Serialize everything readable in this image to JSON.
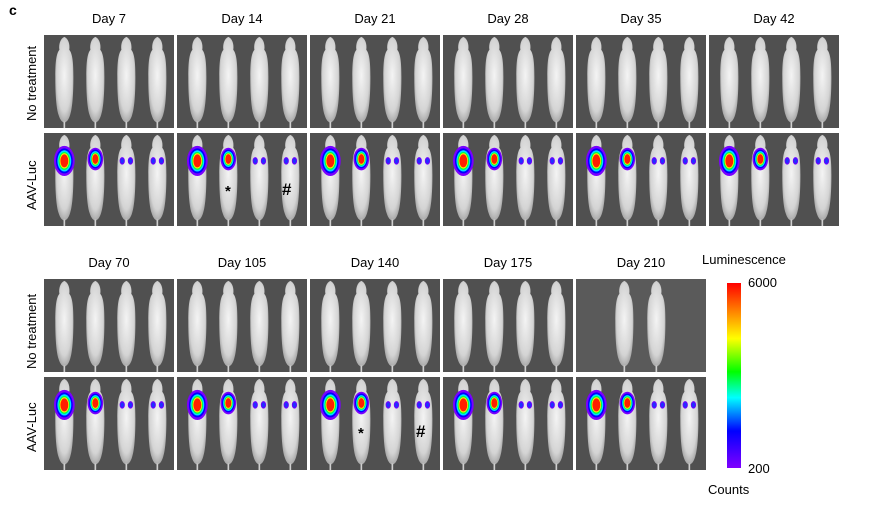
{
  "panel_letter": "c",
  "top": {
    "days": [
      "Day 7",
      "Day 14",
      "Day 21",
      "Day 28",
      "Day 35",
      "Day 42"
    ],
    "row_labels": [
      "No treatment",
      "AAV-Luc"
    ]
  },
  "bottom": {
    "days": [
      "Day 70",
      "Day 105",
      "Day 140",
      "Day 175",
      "Day 210"
    ],
    "row_labels": [
      "No treatment",
      "AAV-Luc"
    ]
  },
  "markers": {
    "star": "*",
    "hash": "#"
  },
  "colorbar": {
    "title": "Luminescence",
    "max_label": "6000",
    "min_label": "200",
    "unit_label": "Counts",
    "colors": [
      "#ff0000",
      "#ff8000",
      "#ffff00",
      "#00ff00",
      "#00ffff",
      "#0000ff",
      "#8000ff"
    ]
  }
}
